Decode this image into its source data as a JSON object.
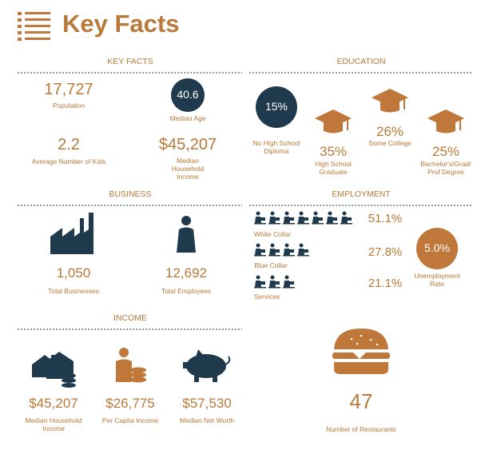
{
  "header": {
    "title": "Key Facts"
  },
  "key_facts": {
    "heading": "KEY FACTS",
    "items": [
      {
        "value": "17,727",
        "label": "Population"
      },
      {
        "value": "40.6",
        "label": "Median Age"
      },
      {
        "value": "2.2",
        "label": "Average Number of Kids"
      },
      {
        "value": "$45,207",
        "label": "Median Household Income"
      }
    ]
  },
  "education": {
    "heading": "EDUCATION",
    "items": [
      {
        "value": "15%",
        "label": "No High School Diploma"
      },
      {
        "value": "35%",
        "label": "High School Graduate"
      },
      {
        "value": "26%",
        "label": "Some College"
      },
      {
        "value": "25%",
        "label": "Bachelor's/Grad/Prof Degree"
      }
    ]
  },
  "business": {
    "heading": "BUSINESS",
    "items": [
      {
        "value": "1,050",
        "label": "Total Businesses"
      },
      {
        "value": "12,692",
        "label": "Total Employees"
      }
    ]
  },
  "employment": {
    "heading": "EMPLOYMENT",
    "items": [
      {
        "value": "51.1%",
        "label": "White Collar"
      },
      {
        "value": "27.8%",
        "label": "Blue Collar"
      },
      {
        "value": "21.1%",
        "label": "Services"
      }
    ],
    "unemployment": {
      "value": "5.0%",
      "label": "Unemployment Rate"
    }
  },
  "income": {
    "heading": "INCOME",
    "items": [
      {
        "value": "$45,207",
        "label": "Median Household Income"
      },
      {
        "value": "$26,775",
        "label": "Per Capita Income"
      },
      {
        "value": "$57,530",
        "label": "Median Net Worth"
      }
    ]
  },
  "restaurants": {
    "value": "47",
    "label": "Number of Restaurants"
  }
}
